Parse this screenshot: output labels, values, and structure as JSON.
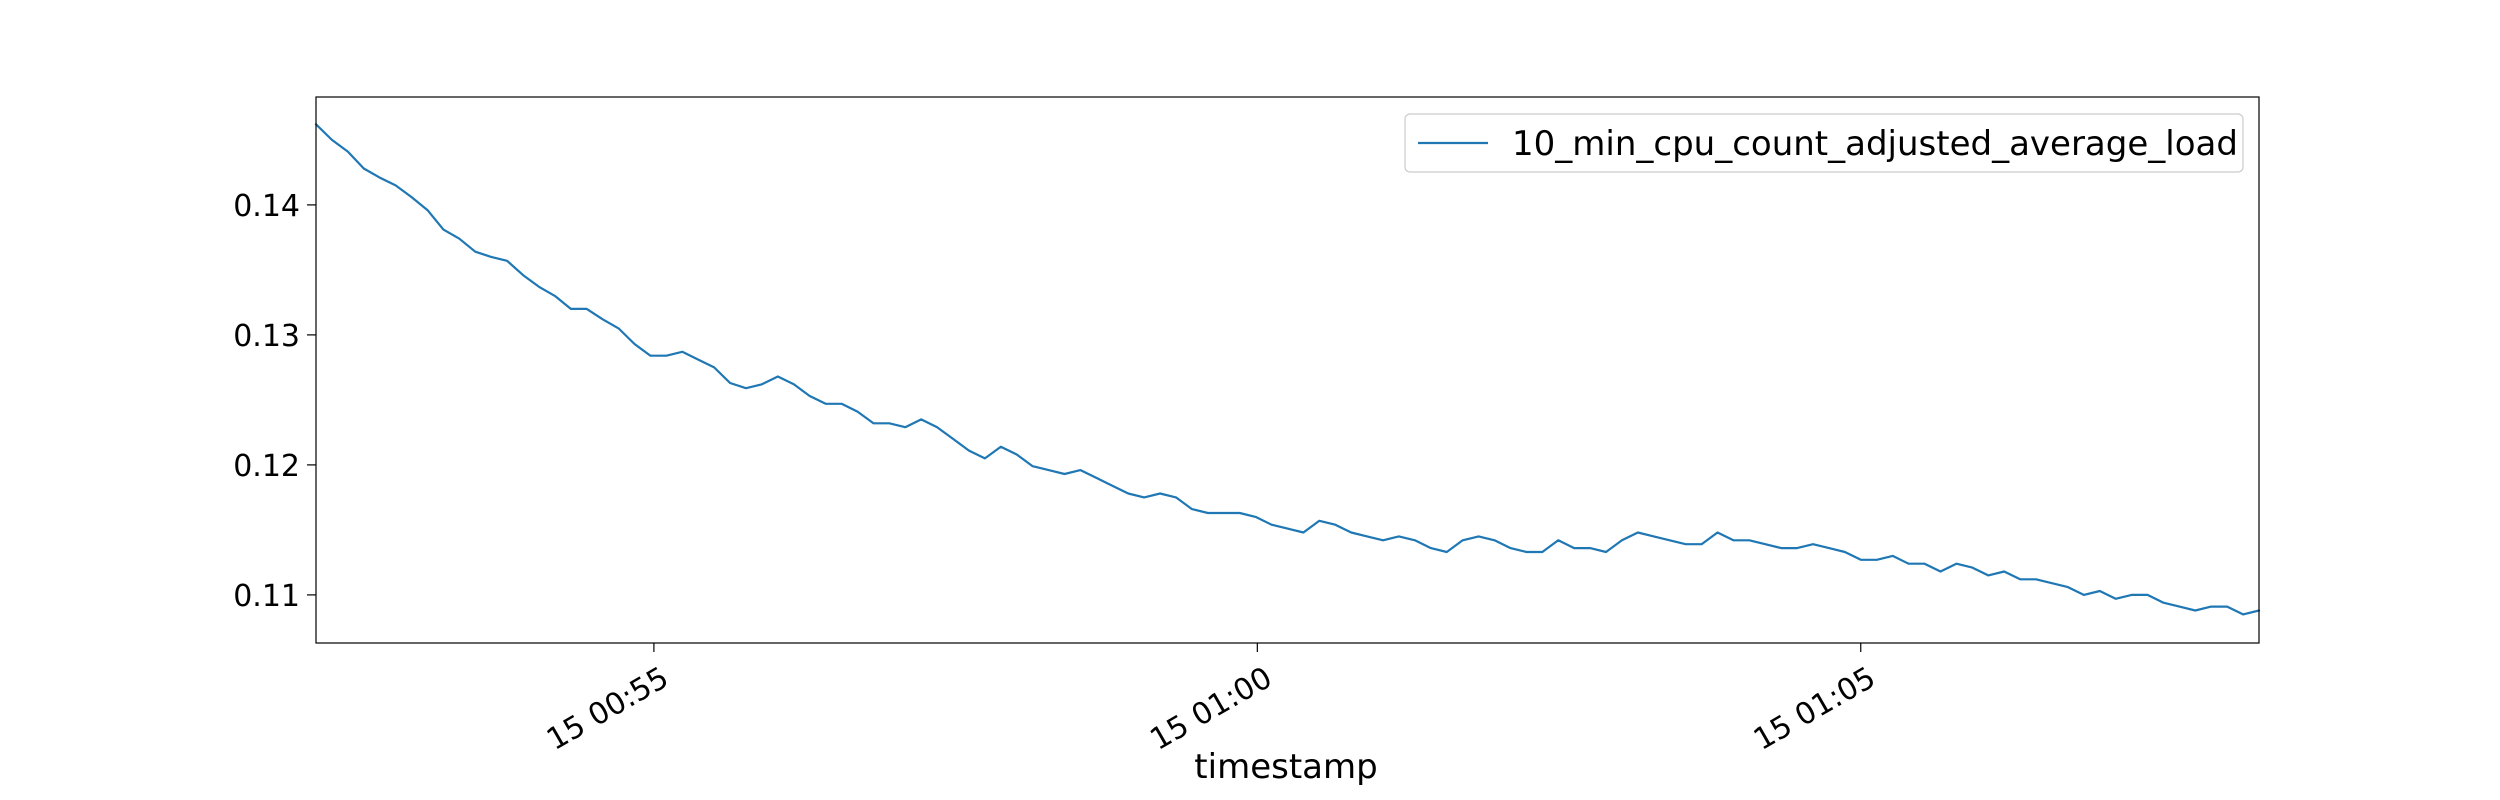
{
  "chart_data": {
    "type": "line",
    "title": "",
    "xlabel": "timestamp",
    "ylabel": "",
    "x_ticks": [
      "15 00:55",
      "15 01:00",
      "15 01:05"
    ],
    "y_ticks": [
      "0.11",
      "0.12",
      "0.13",
      "0.14"
    ],
    "x_tick_minutes": [
      55,
      60,
      65
    ],
    "y_tick_values": [
      0.11,
      0.12,
      0.13,
      0.14
    ],
    "xlim_minutes": [
      52.2,
      68.3
    ],
    "ylim": [
      0.1063,
      0.1483
    ],
    "grid": false,
    "legend": "top-right",
    "series": [
      {
        "name": "10_min_cpu_count_adjusted_average_load",
        "color": "#1f77b4",
        "minute_start": 52.2,
        "minute_end": 68.3,
        "values": [
          0.1462,
          0.145,
          0.1441,
          0.1428,
          0.1421,
          0.1415,
          0.1406,
          0.1396,
          0.1381,
          0.1374,
          0.1364,
          0.136,
          0.1357,
          0.1346,
          0.1337,
          0.133,
          0.132,
          0.132,
          0.1312,
          0.1305,
          0.1293,
          0.1284,
          0.1284,
          0.1287,
          0.1281,
          0.1275,
          0.1263,
          0.1259,
          0.1262,
          0.1268,
          0.1262,
          0.1253,
          0.1247,
          0.1247,
          0.1241,
          0.1232,
          0.1232,
          0.1229,
          0.1235,
          0.1229,
          0.122,
          0.1211,
          0.1205,
          0.1214,
          0.1208,
          0.1199,
          0.1196,
          0.1193,
          0.1196,
          0.119,
          0.1184,
          0.1178,
          0.1175,
          0.1178,
          0.1175,
          0.1166,
          0.1163,
          0.1163,
          0.1163,
          0.116,
          0.1154,
          0.1151,
          0.1148,
          0.1157,
          0.1154,
          0.1148,
          0.1145,
          0.1142,
          0.1145,
          0.1142,
          0.1136,
          0.1133,
          0.1142,
          0.1145,
          0.1142,
          0.1136,
          0.1133,
          0.1133,
          0.1142,
          0.1136,
          0.1136,
          0.1133,
          0.1142,
          0.1148,
          0.1145,
          0.1142,
          0.1139,
          0.1139,
          0.1148,
          0.1142,
          0.1142,
          0.1139,
          0.1136,
          0.1136,
          0.1139,
          0.1136,
          0.1133,
          0.1127,
          0.1127,
          0.113,
          0.1124,
          0.1124,
          0.1118,
          0.1124,
          0.1121,
          0.1115,
          0.1118,
          0.1112,
          0.1112,
          0.1109,
          0.1106,
          0.11,
          0.1103,
          0.1097,
          0.11,
          0.11,
          0.1094,
          0.1091,
          0.1088,
          0.1091,
          0.1091,
          0.1085,
          0.1088
        ]
      }
    ]
  }
}
